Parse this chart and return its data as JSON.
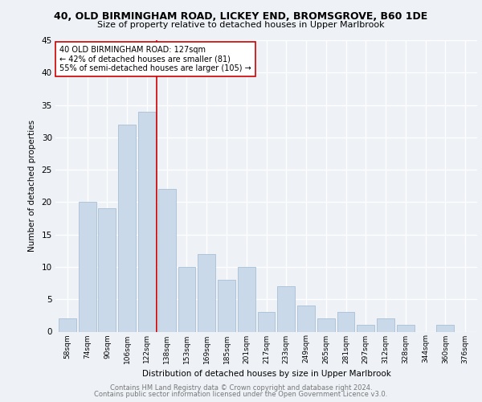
{
  "title1": "40, OLD BIRMINGHAM ROAD, LICKEY END, BROMSGROVE, B60 1DE",
  "title2": "Size of property relative to detached houses in Upper Marlbrook",
  "xlabel": "Distribution of detached houses by size in Upper Marlbrook",
  "ylabel": "Number of detached properties",
  "categories": [
    "58sqm",
    "74sqm",
    "90sqm",
    "106sqm",
    "122sqm",
    "138sqm",
    "153sqm",
    "169sqm",
    "185sqm",
    "201sqm",
    "217sqm",
    "233sqm",
    "249sqm",
    "265sqm",
    "281sqm",
    "297sqm",
    "312sqm",
    "328sqm",
    "344sqm",
    "360sqm",
    "376sqm"
  ],
  "values": [
    2,
    20,
    19,
    32,
    34,
    22,
    10,
    12,
    8,
    10,
    3,
    7,
    4,
    2,
    3,
    1,
    2,
    1,
    0,
    1,
    0
  ],
  "bar_color": "#c9d9ea",
  "bar_edge_color": "#a8bfd4",
  "annotation_line1": "40 OLD BIRMINGHAM ROAD: 127sqm",
  "annotation_line2": "← 42% of detached houses are smaller (81)",
  "annotation_line3": "55% of semi-detached houses are larger (105) →",
  "marker_color": "#cc0000",
  "ylim": [
    0,
    45
  ],
  "yticks": [
    0,
    5,
    10,
    15,
    20,
    25,
    30,
    35,
    40,
    45
  ],
  "footer1": "Contains HM Land Registry data © Crown copyright and database right 2024.",
  "footer2": "Contains public sector information licensed under the Open Government Licence v3.0.",
  "bg_color": "#eef2f7",
  "grid_color": "#ffffff",
  "spine_color": "#c0c8d8"
}
